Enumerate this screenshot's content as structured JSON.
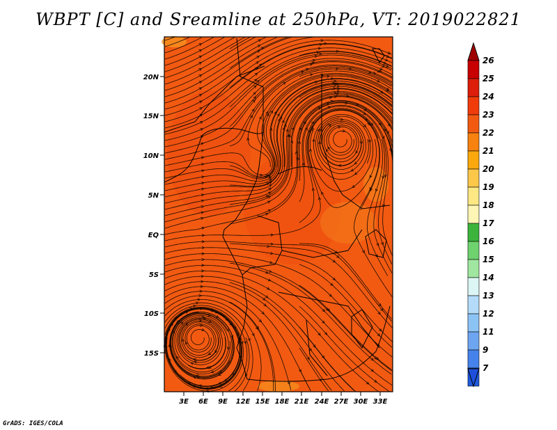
{
  "title": "WBPT [C] and Sreamline at 250hPa, VT: 2019022821",
  "credit": "GrADS: IGES/COLA",
  "map": {
    "lat_labels": [
      "20N",
      "15N",
      "10N",
      "5N",
      "EQ",
      "5S",
      "10S",
      "15S"
    ],
    "lon_labels": [
      "3E",
      "6E",
      "9E",
      "12E",
      "15E",
      "18E",
      "21E",
      "24E",
      "27E",
      "30E",
      "33E"
    ],
    "fill_color": "#f25a12",
    "streamline_color": "#1a0a00"
  },
  "colorbar": {
    "labels": [
      "26",
      "25",
      "24",
      "23",
      "22",
      "21",
      "20",
      "19",
      "18",
      "17",
      "16",
      "15",
      "14",
      "13",
      "12",
      "11",
      "9",
      "7"
    ],
    "colors": [
      "#c80000",
      "#dc1e0a",
      "#f03c0a",
      "#f25a12",
      "#f7820f",
      "#fba80f",
      "#fdc84a",
      "#fde884",
      "#fff5b4",
      "#3cb43c",
      "#6ed26e",
      "#a0e6a0",
      "#dcf5f5",
      "#b4dcfa",
      "#8cc3f5",
      "#6ea5f0",
      "#4682eb",
      "#1e5adc"
    ],
    "top_arrow_color": "#a00000",
    "bottom_arrow_color": "#1e50dc"
  }
}
